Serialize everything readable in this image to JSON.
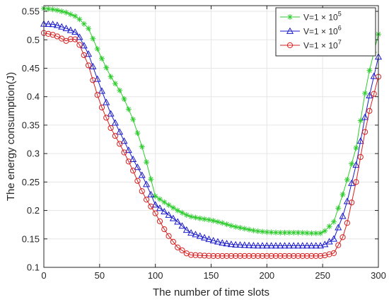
{
  "chart_data": {
    "type": "line",
    "title": "",
    "xlabel": "The number of time slots",
    "ylabel": "The energy consumption(J)",
    "xlim": [
      0,
      300
    ],
    "ylim": [
      0.1,
      0.56
    ],
    "xticks": [
      0,
      50,
      100,
      150,
      200,
      250,
      300
    ],
    "yticks": [
      0.1,
      0.15,
      0.2,
      0.25,
      0.3,
      0.35,
      0.4,
      0.45,
      0.5,
      0.55
    ],
    "grid": true,
    "legend_position": "top-right",
    "series": [
      {
        "name": "V=1 × 10^5",
        "legend_base": "V=1 × 10",
        "legend_exp": "5",
        "color": "#2ecc2e",
        "marker": "star",
        "points": [
          [
            0,
            0.555
          ],
          [
            10,
            0.553
          ],
          [
            20,
            0.548
          ],
          [
            30,
            0.54
          ],
          [
            40,
            0.52
          ],
          [
            50,
            0.475
          ],
          [
            60,
            0.435
          ],
          [
            70,
            0.405
          ],
          [
            80,
            0.36
          ],
          [
            90,
            0.3
          ],
          [
            100,
            0.225
          ],
          [
            110,
            0.212
          ],
          [
            120,
            0.2
          ],
          [
            130,
            0.19
          ],
          [
            140,
            0.186
          ],
          [
            150,
            0.183
          ],
          [
            160,
            0.178
          ],
          [
            170,
            0.172
          ],
          [
            180,
            0.168
          ],
          [
            190,
            0.164
          ],
          [
            200,
            0.162
          ],
          [
            210,
            0.161
          ],
          [
            220,
            0.161
          ],
          [
            230,
            0.161
          ],
          [
            240,
            0.16
          ],
          [
            250,
            0.16
          ],
          [
            260,
            0.18
          ],
          [
            270,
            0.24
          ],
          [
            280,
            0.31
          ],
          [
            290,
            0.43
          ],
          [
            300,
            0.51
          ]
        ]
      },
      {
        "name": "V=1 × 10^6",
        "legend_base": "V=1 × 10",
        "legend_exp": "6",
        "color": "#1a1acc",
        "marker": "triangle",
        "points": [
          [
            0,
            0.528
          ],
          [
            10,
            0.527
          ],
          [
            20,
            0.52
          ],
          [
            30,
            0.512
          ],
          [
            40,
            0.475
          ],
          [
            50,
            0.42
          ],
          [
            60,
            0.37
          ],
          [
            70,
            0.33
          ],
          [
            80,
            0.29
          ],
          [
            90,
            0.255
          ],
          [
            100,
            0.21
          ],
          [
            110,
            0.195
          ],
          [
            120,
            0.18
          ],
          [
            130,
            0.162
          ],
          [
            140,
            0.155
          ],
          [
            150,
            0.148
          ],
          [
            160,
            0.143
          ],
          [
            170,
            0.14
          ],
          [
            180,
            0.139
          ],
          [
            190,
            0.138
          ],
          [
            200,
            0.138
          ],
          [
            210,
            0.138
          ],
          [
            220,
            0.138
          ],
          [
            230,
            0.138
          ],
          [
            240,
            0.138
          ],
          [
            250,
            0.138
          ],
          [
            260,
            0.15
          ],
          [
            270,
            0.2
          ],
          [
            280,
            0.28
          ],
          [
            290,
            0.385
          ],
          [
            300,
            0.47
          ]
        ]
      },
      {
        "name": "V=1 × 10^7",
        "legend_base": "V=1 × 10",
        "legend_exp": "7",
        "color": "#d62020",
        "marker": "circle",
        "points": [
          [
            0,
            0.512
          ],
          [
            10,
            0.508
          ],
          [
            20,
            0.498
          ],
          [
            25,
            0.502
          ],
          [
            30,
            0.5
          ],
          [
            40,
            0.455
          ],
          [
            50,
            0.39
          ],
          [
            60,
            0.345
          ],
          [
            70,
            0.31
          ],
          [
            80,
            0.27
          ],
          [
            90,
            0.225
          ],
          [
            100,
            0.195
          ],
          [
            110,
            0.16
          ],
          [
            120,
            0.135
          ],
          [
            130,
            0.122
          ],
          [
            140,
            0.121
          ],
          [
            150,
            0.12
          ],
          [
            160,
            0.12
          ],
          [
            170,
            0.12
          ],
          [
            180,
            0.12
          ],
          [
            190,
            0.12
          ],
          [
            200,
            0.12
          ],
          [
            210,
            0.12
          ],
          [
            220,
            0.12
          ],
          [
            230,
            0.12
          ],
          [
            240,
            0.12
          ],
          [
            250,
            0.12
          ],
          [
            260,
            0.125
          ],
          [
            270,
            0.16
          ],
          [
            280,
            0.25
          ],
          [
            290,
            0.36
          ],
          [
            300,
            0.435
          ]
        ]
      }
    ]
  }
}
